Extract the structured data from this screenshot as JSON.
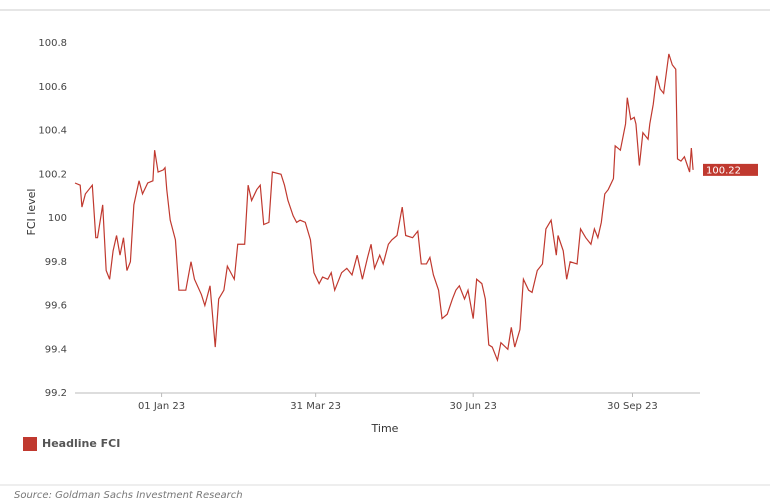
{
  "chart_data": {
    "type": "line",
    "x_label": "Time",
    "y_label": "FCI level",
    "source": "Source: Goldman Sachs Investment Research",
    "legend": "bottom-left",
    "xlim": [
      "2022-11-12",
      "2023-11-08"
    ],
    "xticks": [
      {
        "value": "2023-01-01",
        "label": "01 Jan 23"
      },
      {
        "value": "2023-03-31",
        "label": "31 Mar 23"
      },
      {
        "value": "2023-06-30",
        "label": "30 Jun 23"
      },
      {
        "value": "2023-09-30",
        "label": "30 Sep 23"
      }
    ],
    "ylim": [
      99.2,
      100.8
    ],
    "yticks": [
      99.2,
      99.4,
      99.6,
      99.8,
      100,
      100.2,
      100.4,
      100.6,
      100.8
    ],
    "grid": false,
    "x": [
      "2022-11-12",
      "2022-11-15",
      "2022-11-16",
      "2022-11-18",
      "2022-11-20",
      "2022-11-22",
      "2022-11-24",
      "2022-11-25",
      "2022-11-28",
      "2022-11-30",
      "2022-12-02",
      "2022-12-04",
      "2022-12-06",
      "2022-12-08",
      "2022-12-10",
      "2022-12-12",
      "2022-12-14",
      "2022-12-16",
      "2022-12-19",
      "2022-12-21",
      "2022-12-24",
      "2022-12-27",
      "2022-12-28",
      "2022-12-30",
      "2023-01-02",
      "2023-01-03",
      "2023-01-04",
      "2023-01-06",
      "2023-01-09",
      "2023-01-11",
      "2023-01-15",
      "2023-01-18",
      "2023-01-20",
      "2023-01-24",
      "2023-01-26",
      "2023-01-29",
      "2023-02-01",
      "2023-02-03",
      "2023-02-06",
      "2023-02-08",
      "2023-02-12",
      "2023-02-14",
      "2023-02-18",
      "2023-02-20",
      "2023-02-22",
      "2023-02-25",
      "2023-02-27",
      "2023-03-01",
      "2023-03-04",
      "2023-03-06",
      "2023-03-11",
      "2023-03-13",
      "2023-03-15",
      "2023-03-18",
      "2023-03-20",
      "2023-03-22",
      "2023-03-25",
      "2023-03-28",
      "2023-03-30",
      "2023-04-02",
      "2023-04-04",
      "2023-04-07",
      "2023-04-09",
      "2023-04-11",
      "2023-04-15",
      "2023-04-18",
      "2023-04-21",
      "2023-04-24",
      "2023-04-27",
      "2023-04-30",
      "2023-05-02",
      "2023-05-04",
      "2023-05-07",
      "2023-05-09",
      "2023-05-12",
      "2023-05-14",
      "2023-05-17",
      "2023-05-20",
      "2023-05-22",
      "2023-05-26",
      "2023-05-29",
      "2023-05-31",
      "2023-06-03",
      "2023-06-05",
      "2023-06-07",
      "2023-06-10",
      "2023-06-12",
      "2023-06-15",
      "2023-06-18",
      "2023-06-20",
      "2023-06-22",
      "2023-06-25",
      "2023-06-27",
      "2023-06-30",
      "2023-07-02",
      "2023-07-05",
      "2023-07-07",
      "2023-07-09",
      "2023-07-11",
      "2023-07-14",
      "2023-07-16",
      "2023-07-20",
      "2023-07-22",
      "2023-07-24",
      "2023-07-27",
      "2023-07-29",
      "2023-08-01",
      "2023-08-03",
      "2023-08-06",
      "2023-08-09",
      "2023-08-11",
      "2023-08-14",
      "2023-08-17",
      "2023-08-18",
      "2023-08-21",
      "2023-08-23",
      "2023-08-25",
      "2023-08-29",
      "2023-08-31",
      "2023-09-03",
      "2023-09-06",
      "2023-09-08",
      "2023-09-10",
      "2023-09-12",
      "2023-09-14",
      "2023-09-16",
      "2023-09-19",
      "2023-09-20",
      "2023-09-23",
      "2023-09-26",
      "2023-09-27",
      "2023-09-29",
      "2023-10-01",
      "2023-10-02",
      "2023-10-04",
      "2023-10-06",
      "2023-10-09",
      "2023-10-10",
      "2023-10-12",
      "2023-10-14",
      "2023-10-16",
      "2023-10-18",
      "2023-10-21",
      "2023-10-23",
      "2023-10-25",
      "2023-10-26",
      "2023-10-28",
      "2023-10-30",
      "2023-11-02",
      "2023-11-03",
      "2023-11-04"
    ],
    "series": [
      {
        "name": "Headline FCI",
        "color": "#c0392f",
        "values": [
          100.16,
          100.15,
          100.05,
          100.11,
          100.13,
          100.15,
          99.91,
          99.91,
          100.06,
          99.76,
          99.72,
          99.85,
          99.92,
          99.83,
          99.91,
          99.76,
          99.8,
          100.06,
          100.17,
          100.11,
          100.16,
          100.17,
          100.31,
          100.21,
          100.22,
          100.23,
          100.13,
          99.99,
          99.9,
          99.67,
          99.67,
          99.8,
          99.72,
          99.65,
          99.6,
          99.69,
          99.41,
          99.63,
          99.67,
          99.78,
          99.72,
          99.88,
          99.88,
          100.15,
          100.08,
          100.13,
          100.15,
          99.97,
          99.98,
          100.21,
          100.2,
          100.15,
          100.08,
          100.01,
          99.98,
          99.99,
          99.98,
          99.9,
          99.75,
          99.7,
          99.73,
          99.72,
          99.75,
          99.67,
          99.75,
          99.77,
          99.74,
          99.83,
          99.72,
          99.82,
          99.88,
          99.77,
          99.83,
          99.79,
          99.88,
          99.9,
          99.92,
          100.05,
          99.92,
          99.91,
          99.94,
          99.79,
          99.79,
          99.82,
          99.74,
          99.67,
          99.54,
          99.56,
          99.63,
          99.67,
          99.69,
          99.63,
          99.67,
          99.54,
          99.72,
          99.7,
          99.63,
          99.42,
          99.41,
          99.35,
          99.43,
          99.4,
          99.5,
          99.41,
          99.49,
          99.72,
          99.67,
          99.66,
          99.76,
          99.79,
          99.95,
          99.99,
          99.83,
          99.92,
          99.85,
          99.72,
          99.8,
          99.79,
          99.95,
          99.91,
          99.88,
          99.95,
          99.91,
          99.98,
          100.11,
          100.13,
          100.18,
          100.33,
          100.31,
          100.43,
          100.55,
          100.45,
          100.46,
          100.43,
          100.24,
          100.39,
          100.36,
          100.43,
          100.52,
          100.65,
          100.59,
          100.57,
          100.75,
          100.7,
          100.68,
          100.27,
          100.26,
          100.28,
          100.21,
          100.32,
          100.22
        ]
      }
    ]
  }
}
